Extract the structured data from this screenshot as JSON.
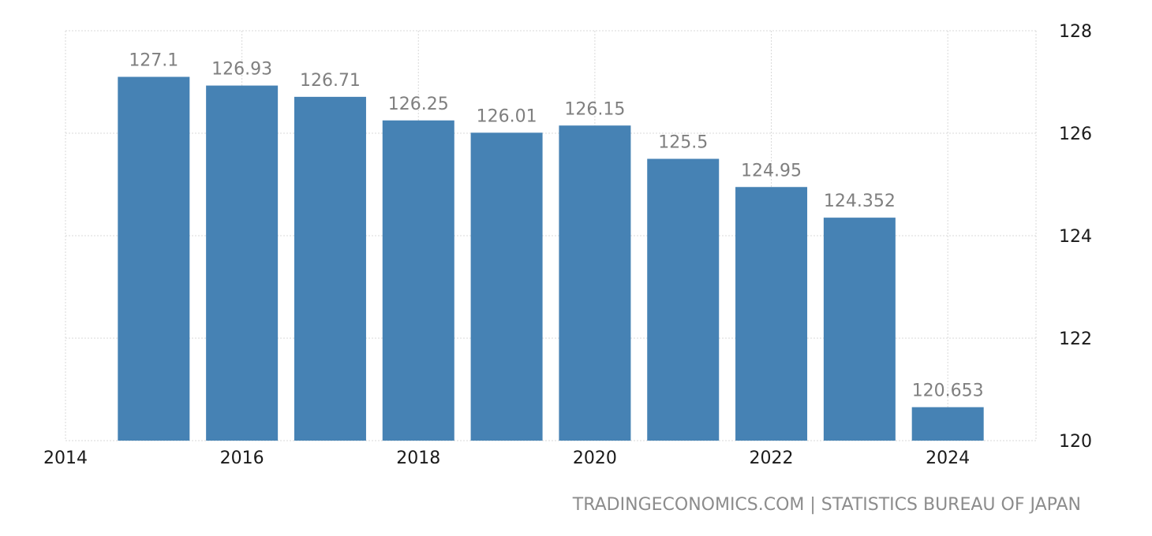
{
  "source": "TRADINGECONOMICS.COM | STATISTICS BUREAU OF JAPAN",
  "colors": {
    "bar": "#4682b4",
    "label": "#7f7f7f",
    "grid": "#d9d9d9",
    "tick": "#1a1a1a"
  },
  "chart_data": {
    "type": "bar",
    "categories": [
      2015,
      2016,
      2017,
      2018,
      2019,
      2020,
      2021,
      2022,
      2023,
      2024
    ],
    "values": [
      127.1,
      126.93,
      126.71,
      126.25,
      126.01,
      126.15,
      125.5,
      124.95,
      124.352,
      120.653
    ],
    "data_labels": [
      "127.1",
      "126.93",
      "126.71",
      "126.25",
      "126.01",
      "126.15",
      "125.5",
      "124.95",
      "124.352",
      "120.653"
    ],
    "x_ticks": [
      "2014",
      "2016",
      "2018",
      "2020",
      "2022",
      "2024"
    ],
    "y_ticks": [
      "120",
      "122",
      "124",
      "126",
      "128"
    ],
    "xlim": [
      2014,
      2025
    ],
    "ylim": [
      120,
      128
    ],
    "y_axis_position": "right",
    "grid": true,
    "title": "",
    "xlabel": "",
    "ylabel": ""
  }
}
